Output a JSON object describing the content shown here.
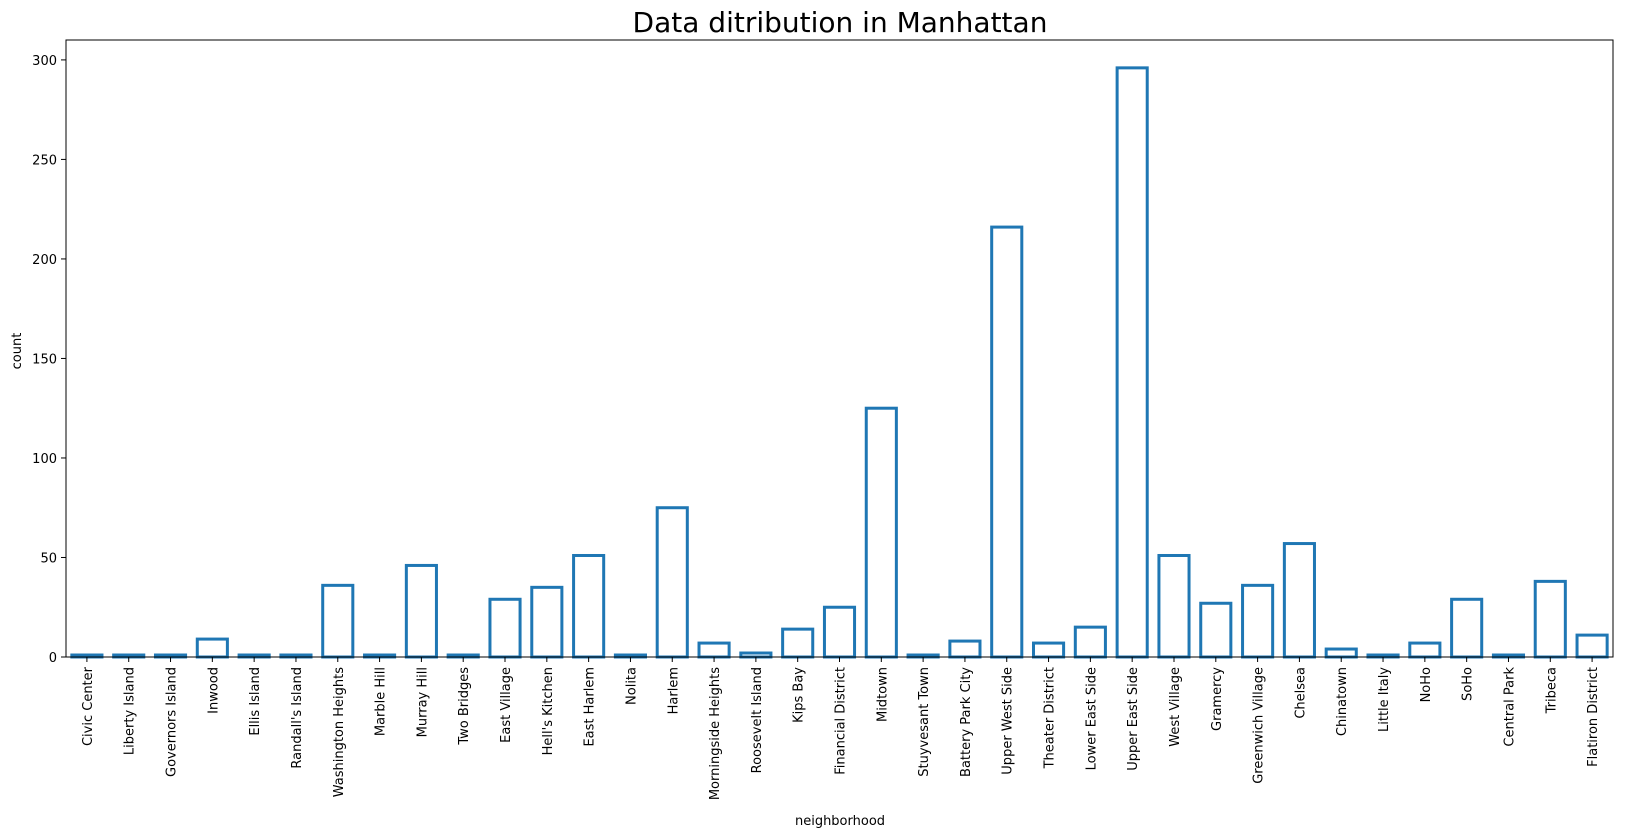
{
  "chart_data": {
    "type": "bar",
    "title": "Data ditribution in Manhattan",
    "xlabel": "neighborhood",
    "ylabel": "count",
    "ylim": [
      0,
      310
    ],
    "yticks": [
      0,
      50,
      100,
      150,
      200,
      250,
      300
    ],
    "grid": false,
    "bar_style": "outlined",
    "bar_color": "#1f77b4",
    "categories": [
      "Civic Center",
      "Liberty Island",
      "Governors Island",
      "Inwood",
      "Ellis Island",
      "Randall's Island",
      "Washington Heights",
      "Marble Hill",
      "Murray Hill",
      "Two Bridges",
      "East Village",
      "Hell's Kitchen",
      "East Harlem",
      "Nolita",
      "Harlem",
      "Morningside Heights",
      "Roosevelt Island",
      "Kips Bay",
      "Financial District",
      "Midtown",
      "Stuyvesant Town",
      "Battery Park City",
      "Upper West Side",
      "Theater District",
      "Lower East Side",
      "Upper East Side",
      "West Village",
      "Gramercy",
      "Greenwich Village",
      "Chelsea",
      "Chinatown",
      "Little Italy",
      "NoHo",
      "SoHo",
      "Central Park",
      "Tribeca",
      "Flatiron District"
    ],
    "values": [
      1,
      1,
      1,
      9,
      1,
      1,
      36,
      1,
      46,
      1,
      29,
      35,
      51,
      1,
      75,
      7,
      2,
      14,
      25,
      125,
      1,
      8,
      216,
      7,
      15,
      296,
      51,
      27,
      36,
      57,
      4,
      1,
      7,
      29,
      1,
      38,
      11
    ]
  }
}
